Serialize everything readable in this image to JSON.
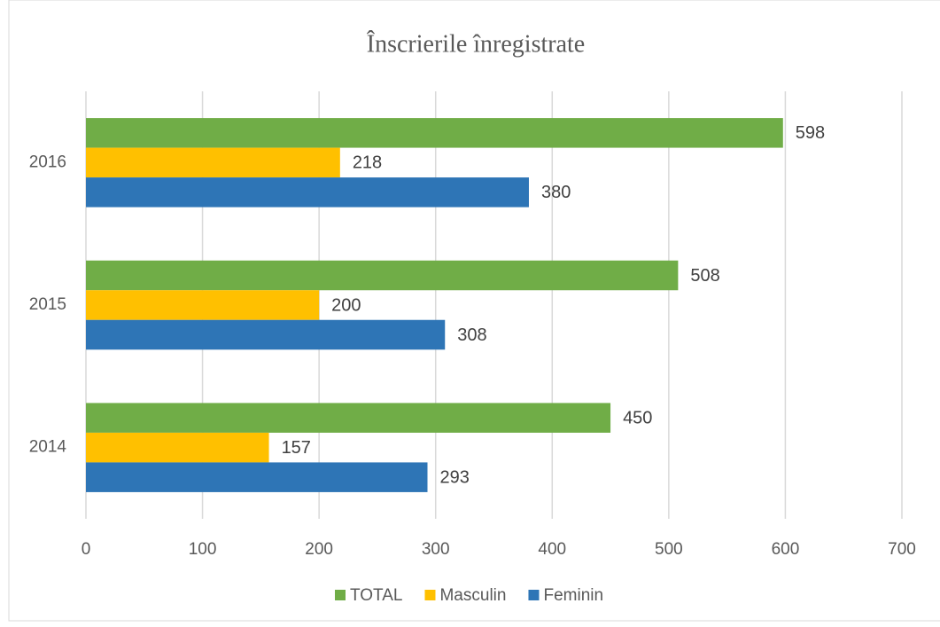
{
  "chart_data": {
    "type": "hbar",
    "title": "Înscrierile înregistrate",
    "categories": [
      "2014",
      "2015",
      "2016"
    ],
    "series": [
      {
        "name": "TOTAL",
        "color": "#70ad47",
        "values": [
          450,
          508,
          598
        ]
      },
      {
        "name": "Masculin",
        "color": "#ffc000",
        "values": [
          157,
          200,
          218
        ]
      },
      {
        "name": "Feminin",
        "color": "#2e75b6",
        "values": [
          293,
          308,
          380
        ]
      }
    ],
    "xlim": [
      0,
      700
    ],
    "xticks": [
      0,
      100,
      200,
      300,
      400,
      500,
      600,
      700
    ],
    "grid": true,
    "legend": "bottom"
  }
}
